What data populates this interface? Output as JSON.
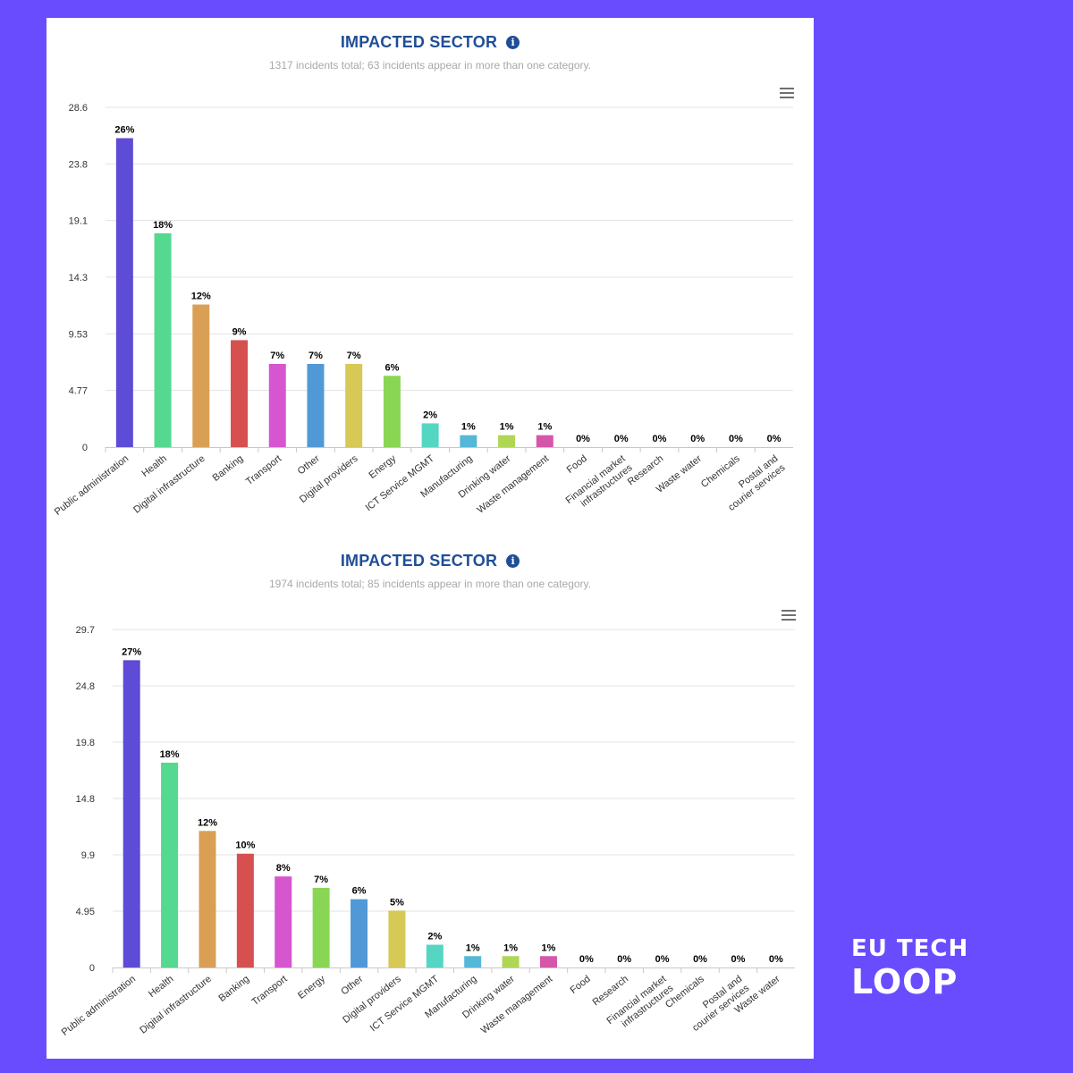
{
  "chart_data": [
    {
      "type": "bar",
      "title": "IMPACTED SECTOR",
      "subtitle": "1317 incidents total; 63 incidents appear in more than one category.",
      "categories": [
        "Public administration",
        "Health",
        "Digital infrastructure",
        "Banking",
        "Transport",
        "Other",
        "Digital providers",
        "Energy",
        "ICT Service MGMT",
        "Manufacturing",
        "Drinking water",
        "Waste management",
        "Food",
        "Financial market infrastructures",
        "Research",
        "Waste water",
        "Chemicals",
        "Postal and courier services"
      ],
      "values": [
        26,
        18,
        12,
        9,
        7,
        7,
        7,
        6,
        2,
        1,
        1,
        1,
        0,
        0,
        0,
        0,
        0,
        0
      ],
      "data_labels": [
        "26%",
        "18%",
        "12%",
        "9%",
        "7%",
        "7%",
        "7%",
        "6%",
        "2%",
        "1%",
        "1%",
        "1%",
        "0%",
        "0%",
        "0%",
        "0%",
        "0%",
        "0%"
      ],
      "colors": [
        "#5e4bd6",
        "#55d890",
        "#d9a055",
        "#d65050",
        "#d656cf",
        "#5199d6",
        "#d6c955",
        "#89d655",
        "#55d6c2",
        "#55b8d6",
        "#b0d655",
        "#d656aa",
        "#5e4bd6",
        "#5e4bd6",
        "#5e4bd6",
        "#5e4bd6",
        "#5e4bd6",
        "#5e4bd6"
      ],
      "yticks": [
        "0",
        "4.77",
        "9.53",
        "14.3",
        "19.1",
        "23.8",
        "28.6"
      ],
      "ylim": [
        0,
        28.6
      ],
      "grid": true
    },
    {
      "type": "bar",
      "title": "IMPACTED SECTOR",
      "subtitle": "1974 incidents total; 85 incidents appear in more than one category.",
      "categories": [
        "Public administration",
        "Health",
        "Digital infrastructure",
        "Banking",
        "Transport",
        "Energy",
        "Other",
        "Digital providers",
        "ICT Service MGMT",
        "Manufacturing",
        "Drinking water",
        "Waste management",
        "Food",
        "Research",
        "Financial market infrastructures",
        "Chemicals",
        "Postal and courier services",
        "Waste water"
      ],
      "values": [
        27,
        18,
        12,
        10,
        8,
        7,
        6,
        5,
        2,
        1,
        1,
        1,
        0,
        0,
        0,
        0,
        0,
        0
      ],
      "data_labels": [
        "27%",
        "18%",
        "12%",
        "10%",
        "8%",
        "7%",
        "6%",
        "5%",
        "2%",
        "1%",
        "1%",
        "1%",
        "0%",
        "0%",
        "0%",
        "0%",
        "0%",
        "0%"
      ],
      "colors": [
        "#5e4bd6",
        "#55d890",
        "#d9a055",
        "#d65050",
        "#d656cf",
        "#89d655",
        "#5199d6",
        "#d6c955",
        "#55d6c2",
        "#55b8d6",
        "#b0d655",
        "#d656aa",
        "#5e4bd6",
        "#5e4bd6",
        "#5e4bd6",
        "#5e4bd6",
        "#5e4bd6",
        "#5e4bd6"
      ],
      "yticks": [
        "0",
        "4.95",
        "9.9",
        "14.8",
        "19.8",
        "24.8",
        "29.7"
      ],
      "ylim": [
        0,
        29.7
      ],
      "grid": true
    }
  ],
  "icons": {
    "info": "info-icon",
    "menu": "hamburger-menu-icon"
  },
  "info_glyph": "i",
  "logo": {
    "line1": "EU TECH",
    "line2": "LOOP"
  }
}
